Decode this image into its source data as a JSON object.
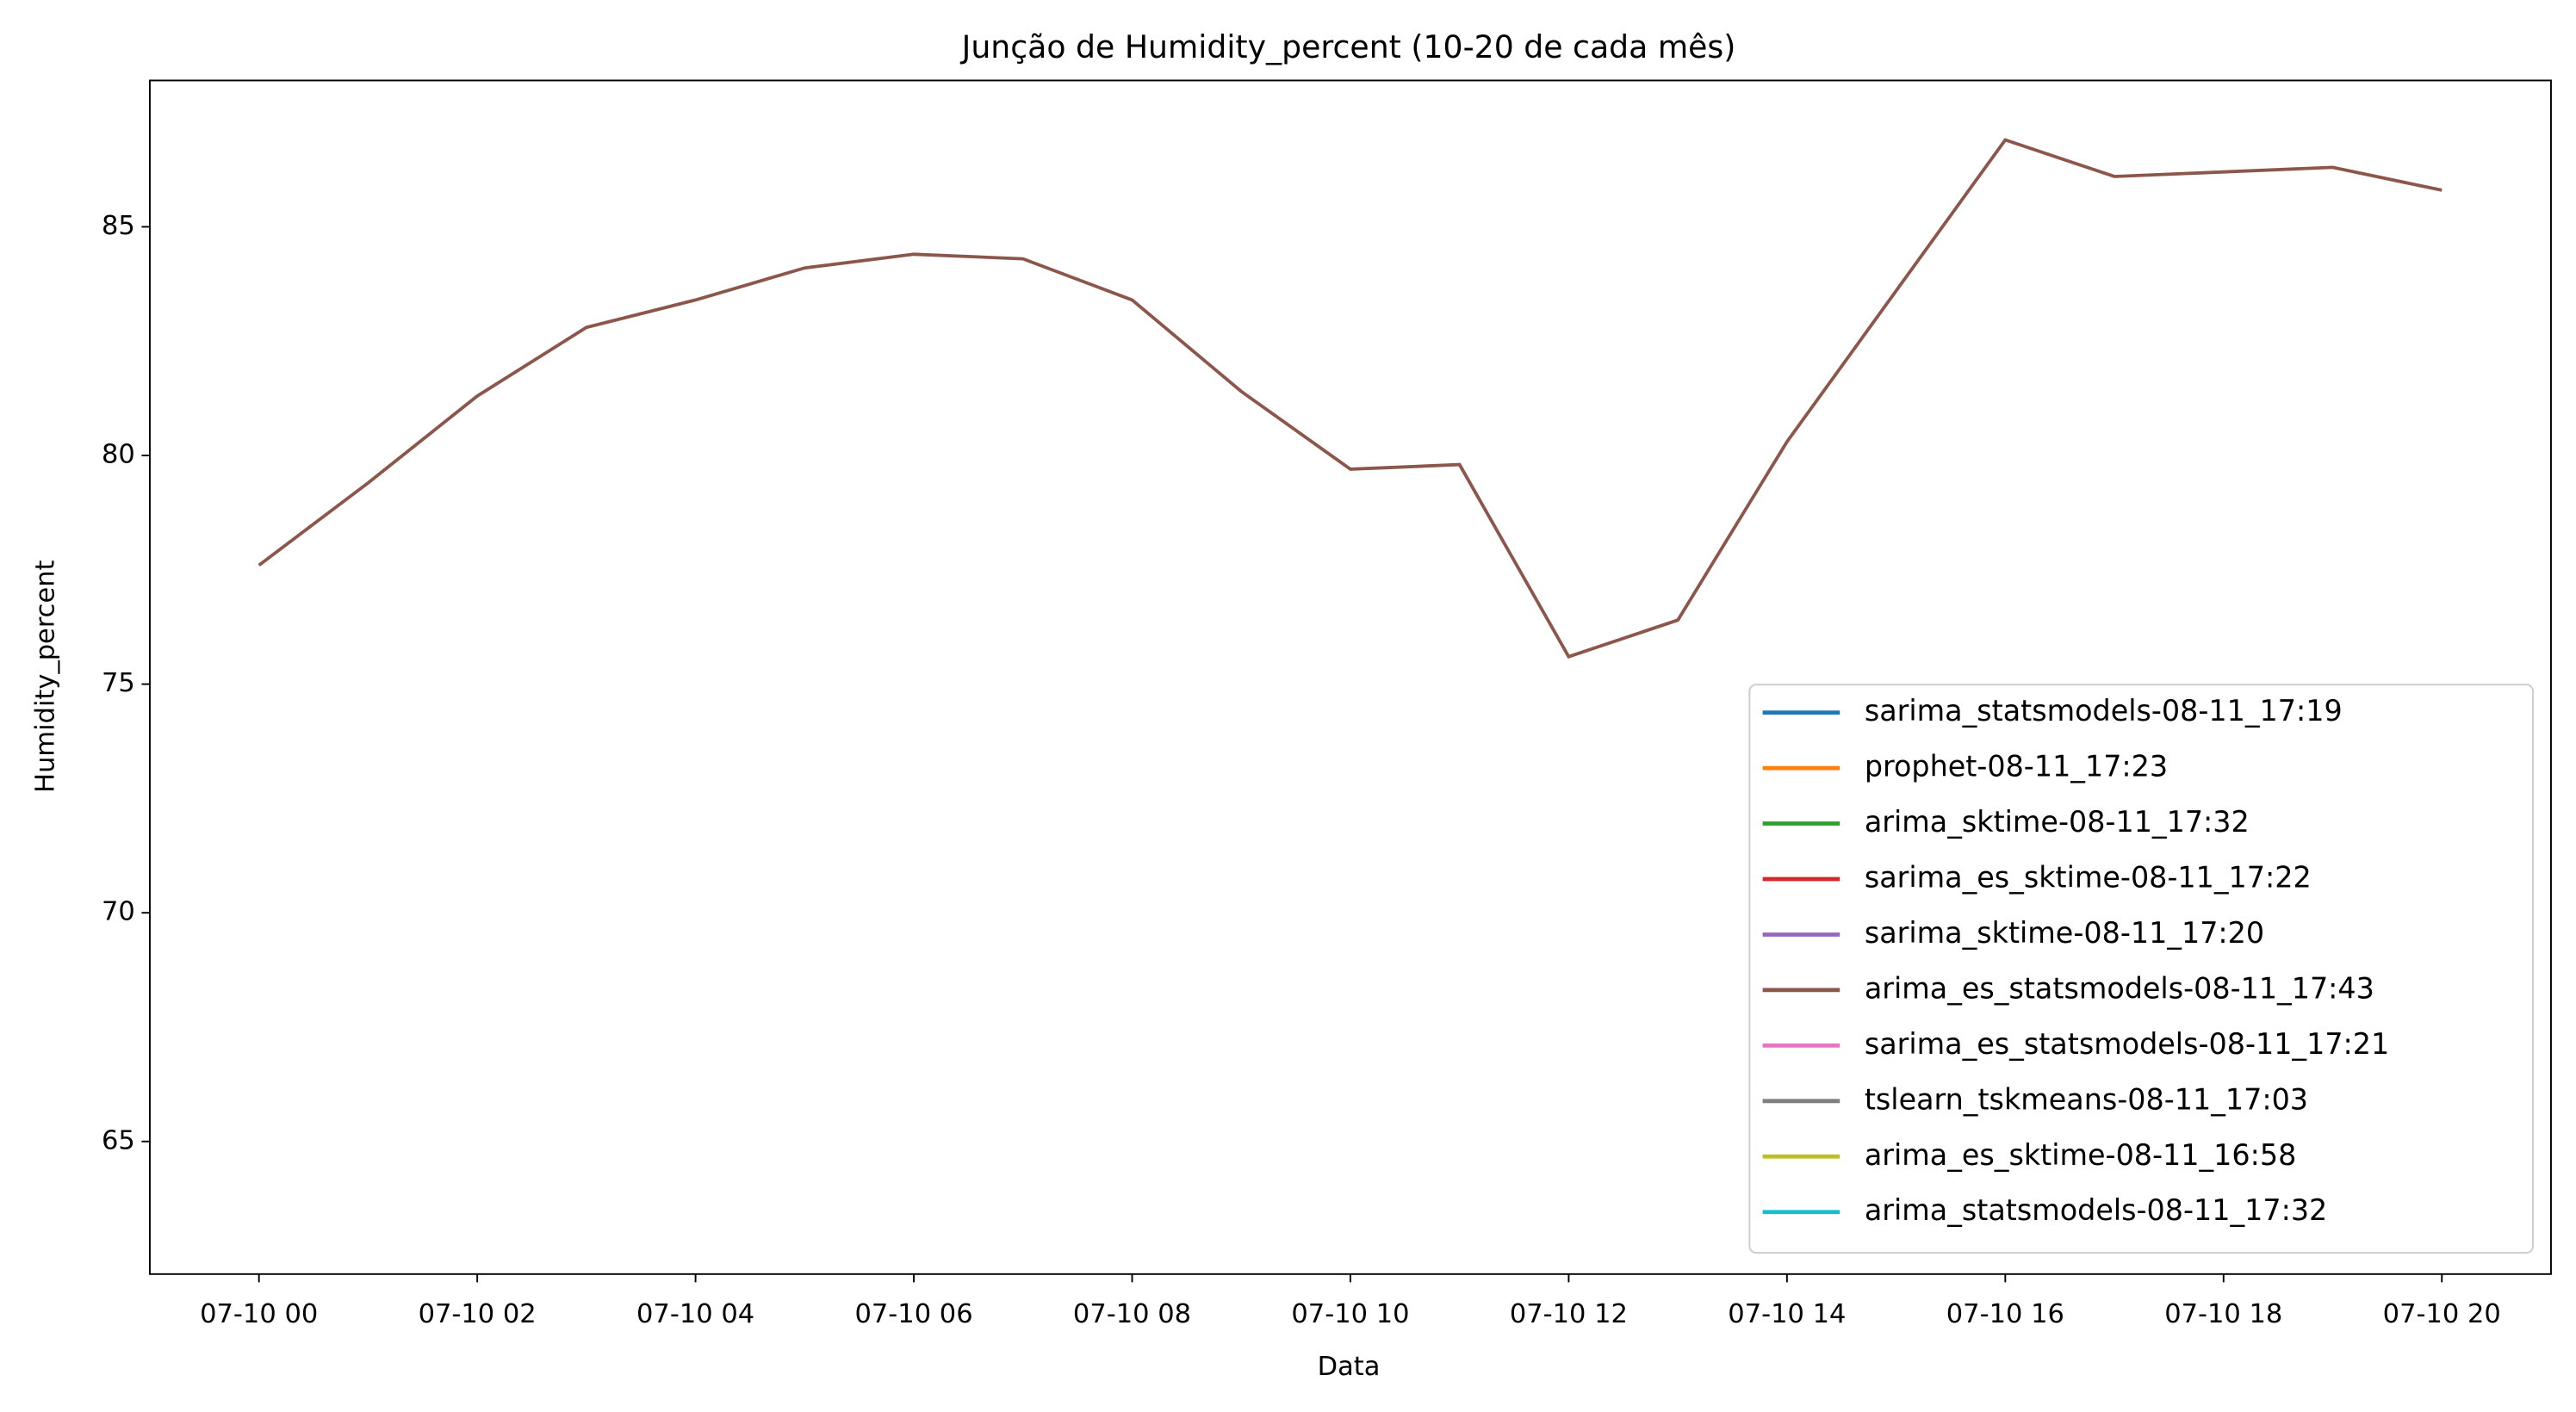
{
  "chart_data": {
    "type": "line",
    "title": "Junção de Humidity_percent (10-20 de cada mês)",
    "x_label": "Data",
    "y_label": "Humidity_percent",
    "x": [
      0,
      1,
      2,
      3,
      4,
      5,
      6,
      7,
      8,
      9,
      10,
      11,
      12,
      13,
      14,
      15,
      16,
      17,
      18,
      19,
      20
    ],
    "series": [
      {
        "name": "sarima_statsmodels-08-11_17:19",
        "color": "#1f77b4",
        "values": [
          null,
          null,
          null,
          null,
          null,
          null,
          null,
          null,
          null,
          null,
          null,
          null,
          null,
          null,
          null,
          null,
          null,
          null,
          null,
          null,
          null
        ]
      },
      {
        "name": "prophet-08-11_17:23",
        "color": "#ff7f0e",
        "values": [
          null,
          null,
          null,
          null,
          null,
          null,
          null,
          null,
          null,
          null,
          null,
          null,
          null,
          null,
          null,
          null,
          null,
          null,
          null,
          null,
          null
        ]
      },
      {
        "name": "arima_sktime-08-11_17:32",
        "color": "#2ca02c",
        "values": [
          null,
          null,
          null,
          null,
          null,
          null,
          null,
          null,
          null,
          null,
          null,
          null,
          null,
          null,
          null,
          null,
          null,
          null,
          null,
          null,
          null
        ]
      },
      {
        "name": "sarima_es_sktime-08-11_17:22",
        "color": "#d62728",
        "values": [
          null,
          null,
          null,
          null,
          null,
          null,
          null,
          null,
          null,
          null,
          null,
          null,
          null,
          null,
          null,
          null,
          null,
          null,
          null,
          null,
          null
        ]
      },
      {
        "name": "sarima_sktime-08-11_17:20",
        "color": "#9467bd",
        "values": [
          null,
          null,
          null,
          null,
          null,
          null,
          null,
          null,
          null,
          null,
          null,
          null,
          null,
          null,
          null,
          null,
          null,
          null,
          null,
          null,
          null
        ]
      },
      {
        "name": "arima_es_statsmodels-08-11_17:43",
        "color": "#8c564b",
        "values": [
          77.6,
          79.4,
          81.3,
          82.8,
          83.4,
          84.1,
          84.4,
          84.3,
          83.4,
          81.4,
          79.7,
          79.8,
          75.6,
          76.4,
          80.3,
          83.6,
          86.9,
          86.1,
          86.2,
          86.3,
          85.8
        ]
      },
      {
        "name": "sarima_es_statsmodels-08-11_17:21",
        "color": "#e377c2",
        "values": [
          null,
          null,
          null,
          null,
          null,
          null,
          null,
          null,
          null,
          null,
          null,
          null,
          null,
          null,
          null,
          null,
          null,
          null,
          null,
          null,
          null
        ]
      },
      {
        "name": "tslearn_tskmeans-08-11_17:03",
        "color": "#7f7f7f",
        "values": [
          null,
          null,
          null,
          null,
          null,
          null,
          null,
          null,
          null,
          null,
          null,
          null,
          null,
          null,
          null,
          null,
          null,
          null,
          null,
          null,
          null
        ]
      },
      {
        "name": "arima_es_sktime-08-11_16:58",
        "color": "#bcbd22",
        "values": [
          null,
          null,
          null,
          null,
          null,
          null,
          null,
          null,
          null,
          null,
          null,
          null,
          null,
          null,
          null,
          null,
          null,
          null,
          null,
          null,
          null
        ]
      },
      {
        "name": "arima_statsmodels-08-11_17:32",
        "color": "#17becf",
        "values": [
          null,
          null,
          null,
          null,
          null,
          null,
          null,
          null,
          null,
          null,
          null,
          null,
          null,
          null,
          null,
          null,
          null,
          null,
          null,
          null,
          null
        ]
      }
    ],
    "xlim": [
      -1,
      21
    ],
    "xticks": [
      {
        "value": 0,
        "label": "07-10 00"
      },
      {
        "value": 2,
        "label": "07-10 02"
      },
      {
        "value": 4,
        "label": "07-10 04"
      },
      {
        "value": 6,
        "label": "07-10 06"
      },
      {
        "value": 8,
        "label": "07-10 08"
      },
      {
        "value": 10,
        "label": "07-10 10"
      },
      {
        "value": 12,
        "label": "07-10 12"
      },
      {
        "value": 14,
        "label": "07-10 14"
      },
      {
        "value": 16,
        "label": "07-10 16"
      },
      {
        "value": 18,
        "label": "07-10 18"
      },
      {
        "value": 20,
        "label": "07-10 20"
      }
    ],
    "ylim": [
      62.1,
      88.2
    ],
    "yticks": [
      65,
      70,
      75,
      80,
      85
    ],
    "legend": "lower right"
  }
}
